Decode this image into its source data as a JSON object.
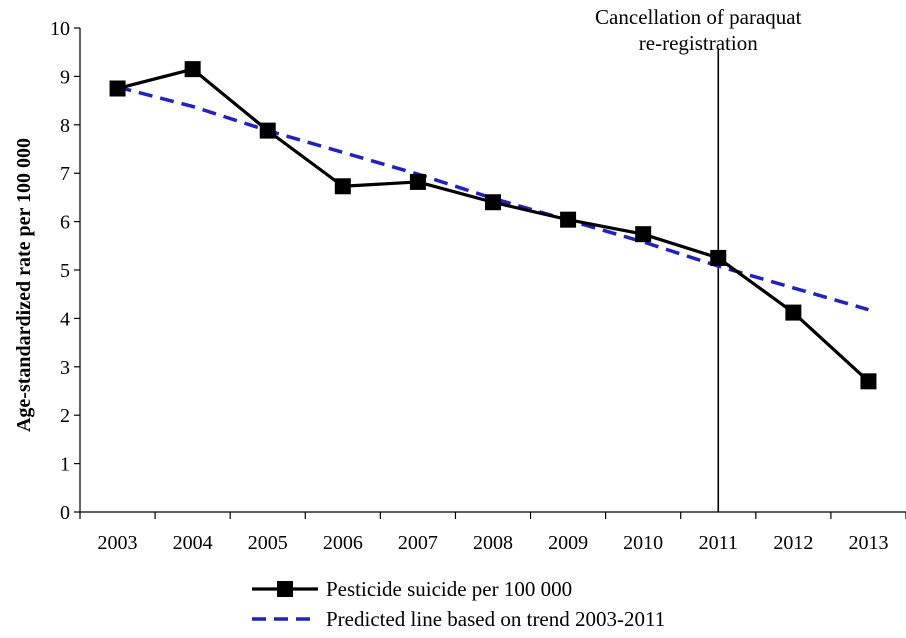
{
  "chart_data": {
    "type": "line",
    "categories": [
      "2003",
      "2004",
      "2005",
      "2006",
      "2007",
      "2008",
      "2009",
      "2010",
      "2011",
      "2012",
      "2013"
    ],
    "series": [
      {
        "name": "Pesticide suicide per 100 000",
        "values": [
          8.75,
          9.15,
          7.88,
          6.73,
          6.82,
          6.4,
          6.04,
          5.74,
          5.25,
          4.12,
          2.7
        ],
        "color": "#000000",
        "style": "solid",
        "marker": "square"
      },
      {
        "name": "Predicted line based on trend 2003-2011",
        "values": [
          8.78,
          8.38,
          7.88,
          7.43,
          6.98,
          6.48,
          6.03,
          5.58,
          5.08,
          4.63,
          4.18
        ],
        "color": "#1f1fd0",
        "style": "dashed",
        "marker": "none"
      }
    ],
    "xlabel": "",
    "ylabel": "Age-standardized rate per 100 000",
    "ylim": [
      0,
      10
    ],
    "yticks": [
      "0",
      "1",
      "2",
      "3",
      "4",
      "5",
      "6",
      "7",
      "8",
      "9",
      "10"
    ],
    "grid": false,
    "legend_position": "bottom-left",
    "annotation": {
      "x_category": "2011",
      "lines": [
        "Cancellation of paraquat",
        "re-registration"
      ]
    }
  }
}
